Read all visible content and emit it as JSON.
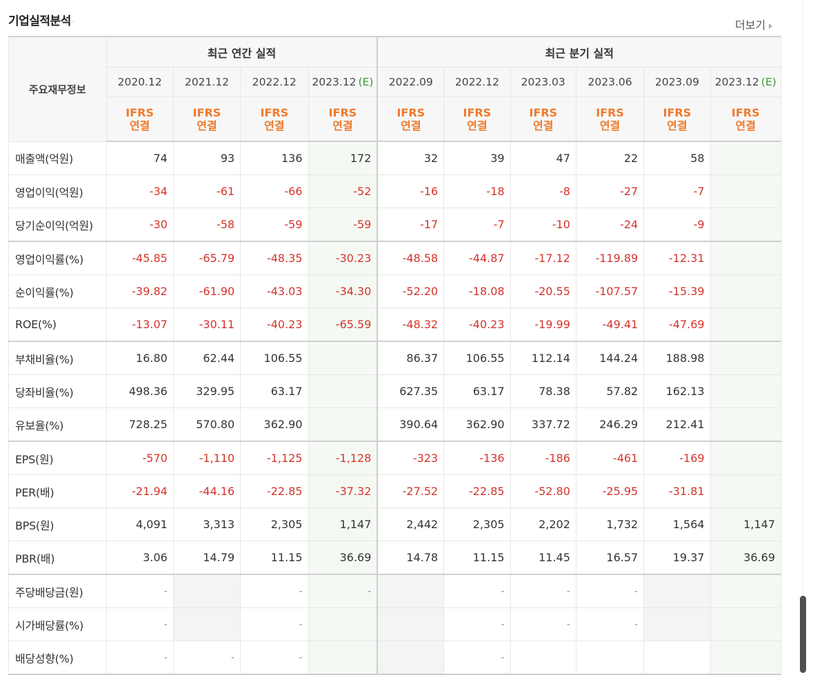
{
  "header": {
    "title": "기업실적분석",
    "more_label": "더보기"
  },
  "table": {
    "row_header": "주요재무정보",
    "group_annual": "최근 연간 실적",
    "group_quarter": "최근 분기 실적",
    "periods": [
      {
        "label": "2020.12",
        "est": ""
      },
      {
        "label": "2021.12",
        "est": ""
      },
      {
        "label": "2022.12",
        "est": ""
      },
      {
        "label": "2023.12",
        "est": "(E)"
      },
      {
        "label": "2022.09",
        "est": ""
      },
      {
        "label": "2022.12",
        "est": ""
      },
      {
        "label": "2023.03",
        "est": ""
      },
      {
        "label": "2023.06",
        "est": ""
      },
      {
        "label": "2023.09",
        "est": ""
      },
      {
        "label": "2023.12",
        "est": "(E)"
      }
    ],
    "ifrs_top": "IFRS",
    "ifrs_bottom": "연결",
    "rows": [
      {
        "label": "매출액(억원)",
        "values": [
          "74",
          "93",
          "136",
          "172",
          "32",
          "39",
          "47",
          "22",
          "58",
          ""
        ]
      },
      {
        "label": "영업이익(억원)",
        "values": [
          "-34",
          "-61",
          "-66",
          "-52",
          "-16",
          "-18",
          "-8",
          "-27",
          "-7",
          ""
        ]
      },
      {
        "label": "당기순이익(억원)",
        "values": [
          "-30",
          "-58",
          "-59",
          "-59",
          "-17",
          "-7",
          "-10",
          "-24",
          "-9",
          ""
        ]
      },
      {
        "label": "영업이익률(%)",
        "values": [
          "-45.85",
          "-65.79",
          "-48.35",
          "-30.23",
          "-48.58",
          "-44.87",
          "-17.12",
          "-119.89",
          "-12.31",
          ""
        ]
      },
      {
        "label": "순이익률(%)",
        "values": [
          "-39.82",
          "-61.90",
          "-43.03",
          "-34.30",
          "-52.20",
          "-18.08",
          "-20.55",
          "-107.57",
          "-15.39",
          ""
        ]
      },
      {
        "label": "ROE(%)",
        "values": [
          "-13.07",
          "-30.11",
          "-40.23",
          "-65.59",
          "-48.32",
          "-40.23",
          "-19.99",
          "-49.41",
          "-47.69",
          ""
        ]
      },
      {
        "label": "부채비율(%)",
        "values": [
          "16.80",
          "62.44",
          "106.55",
          "",
          "86.37",
          "106.55",
          "112.14",
          "144.24",
          "188.98",
          ""
        ]
      },
      {
        "label": "당좌비율(%)",
        "values": [
          "498.36",
          "329.95",
          "63.17",
          "",
          "627.35",
          "63.17",
          "78.38",
          "57.82",
          "162.13",
          ""
        ]
      },
      {
        "label": "유보율(%)",
        "values": [
          "728.25",
          "570.80",
          "362.90",
          "",
          "390.64",
          "362.90",
          "337.72",
          "246.29",
          "212.41",
          ""
        ]
      },
      {
        "label": "EPS(원)",
        "values": [
          "-570",
          "-1,110",
          "-1,125",
          "-1,128",
          "-323",
          "-136",
          "-186",
          "-461",
          "-169",
          ""
        ]
      },
      {
        "label": "PER(배)",
        "values": [
          "-21.94",
          "-44.16",
          "-22.85",
          "-37.32",
          "-27.52",
          "-22.85",
          "-52.80",
          "-25.95",
          "-31.81",
          ""
        ]
      },
      {
        "label": "BPS(원)",
        "values": [
          "4,091",
          "3,313",
          "2,305",
          "1,147",
          "2,442",
          "2,305",
          "2,202",
          "1,732",
          "1,564",
          "1,147"
        ]
      },
      {
        "label": "PBR(배)",
        "values": [
          "3.06",
          "14.79",
          "11.15",
          "36.69",
          "14.78",
          "11.15",
          "11.45",
          "16.57",
          "19.37",
          "36.69"
        ]
      },
      {
        "label": "주당배당금(원)",
        "values": [
          "-",
          "",
          "-",
          "-",
          "",
          "-",
          "-",
          "-",
          "",
          ""
        ]
      },
      {
        "label": "시가배당률(%)",
        "values": [
          "-",
          "",
          "-",
          "",
          "",
          "-",
          "-",
          "-",
          "",
          ""
        ]
      },
      {
        "label": "배당성향(%)",
        "values": [
          "-",
          "-",
          "-",
          "",
          "",
          "-",
          "",
          "",
          "",
          ""
        ]
      }
    ]
  }
}
